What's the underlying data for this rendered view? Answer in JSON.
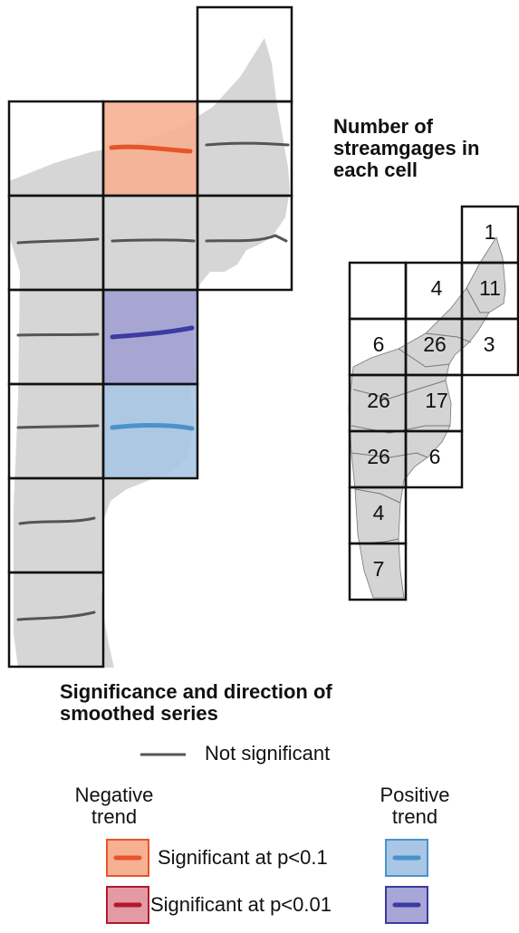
{
  "counts_heading_line1": "Number of",
  "counts_heading_line2": "streamgages in",
  "counts_heading_line3": "each cell",
  "legend": {
    "heading_line1": "Significance and direction of",
    "heading_line2": "smoothed series",
    "not_significant": "Not significant",
    "negative_line1": "Negative",
    "negative_line2": "trend",
    "positive_line1": "Positive",
    "positive_line2": "trend",
    "p01": "Significant at p<0.1",
    "p001": "Significant at p<0.01"
  },
  "colors": {
    "land": "#d6d6d6",
    "neg_p01_fill": "#f6b092",
    "neg_p01_line": "#e8542a",
    "neg_p001_fill": "#e39aa5",
    "neg_p001_line": "#b3182b",
    "pos_p01_fill": "#a9c6e4",
    "pos_p01_line": "#4a92cc",
    "pos_p001_fill": "#a7a6d6",
    "pos_p001_line": "#3b3ba0",
    "ns_line": "#555555"
  },
  "trend_cells": [
    {
      "id": "r1c1",
      "significance": "not-significant",
      "direction": "none"
    },
    {
      "id": "r1c2",
      "significance": "p<0.1",
      "direction": "negative"
    },
    {
      "id": "r1c3",
      "significance": "not-significant",
      "direction": "none"
    },
    {
      "id": "r2c1",
      "significance": "not-significant",
      "direction": "none"
    },
    {
      "id": "r2c2",
      "significance": "not-significant",
      "direction": "none"
    },
    {
      "id": "r2c3",
      "significance": "not-significant",
      "direction": "none"
    },
    {
      "id": "r3c1",
      "significance": "not-significant",
      "direction": "none"
    },
    {
      "id": "r3c2",
      "significance": "p<0.01",
      "direction": "positive"
    },
    {
      "id": "r4c1",
      "significance": "not-significant",
      "direction": "none"
    },
    {
      "id": "r4c2",
      "significance": "p<0.1",
      "direction": "positive"
    },
    {
      "id": "r5c1",
      "significance": "not-significant",
      "direction": "none"
    },
    {
      "id": "r6c1",
      "significance": "not-significant",
      "direction": "none"
    }
  ],
  "counts": [
    "1",
    "4",
    "11",
    "6",
    "26",
    "3",
    "26",
    "17",
    "26",
    "6",
    "4",
    "7"
  ]
}
